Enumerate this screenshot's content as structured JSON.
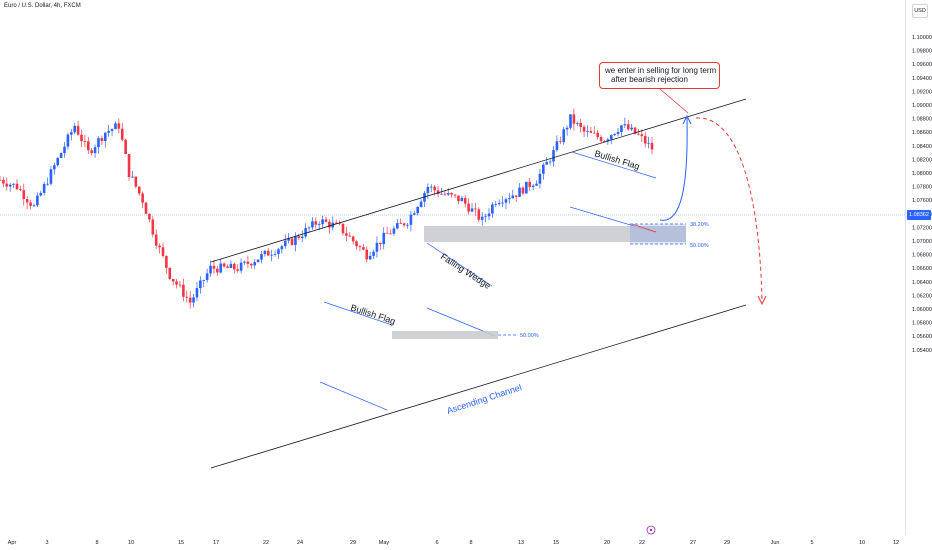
{
  "header": {
    "symbol_text": "Euro / U.S. Dollar, 4h, FXCM"
  },
  "currency_button": "USD",
  "price_scale": {
    "labels": [
      "1.10000",
      "1.09800",
      "1.09600",
      "1.09400",
      "1.09200",
      "1.09000",
      "1.08800",
      "1.08600",
      "1.08400",
      "1.08200",
      "1.08000",
      "1.07800",
      "1.07600",
      "1.07400",
      "1.07200",
      "1.07000",
      "1.06800",
      "1.06600",
      "1.06400",
      "1.06200",
      "1.06000",
      "1.05800",
      "1.05600",
      "1.05400"
    ],
    "current_price_label": "1.08362"
  },
  "time_axis": {
    "labels": [
      "Apr",
      "3",
      "8",
      "10",
      "15",
      "17",
      "22",
      "24",
      "29",
      "May",
      "6",
      "8",
      "13",
      "15",
      "20",
      "22",
      "27",
      "29",
      "Jun",
      "5",
      "10",
      "12"
    ]
  },
  "annotations": {
    "bullish_flag_1": "Bullish Flag",
    "bullish_flag_2": "Bullish Flag",
    "falling_wedge": "Falling Wedge",
    "ascending_channel": "Ascending Channel",
    "fib_382": "38.20%",
    "fib_500_upper": "50.00%",
    "fib_500_lower": "50.00%",
    "note_line1": "we enter in selling for long term",
    "note_line2": "after bearish rejection"
  },
  "colors": {
    "up": "#2962ff",
    "down": "#f23645",
    "line": "#131722",
    "annotation_blue": "#2962ff",
    "annotation_red": "#e53935",
    "zone": "#c8c9cc"
  },
  "chart_data": {
    "type": "candlestick",
    "instrument": "Euro / U.S. Dollar",
    "timeframe": "4h",
    "source": "FXCM",
    "ylim": [
      1.054,
      1.101
    ],
    "current_price": 1.08362,
    "grid": false,
    "path_points": [
      {
        "i": 0,
        "p": 1.079
      },
      {
        "i": 5,
        "p": 1.078
      },
      {
        "i": 10,
        "p": 1.075
      },
      {
        "i": 16,
        "p": 1.081
      },
      {
        "i": 22,
        "p": 1.087
      },
      {
        "i": 26,
        "p": 1.083
      },
      {
        "i": 31,
        "p": 1.086
      },
      {
        "i": 35,
        "p": 1.087
      },
      {
        "i": 38,
        "p": 1.08
      },
      {
        "i": 42,
        "p": 1.076
      },
      {
        "i": 46,
        "p": 1.07
      },
      {
        "i": 50,
        "p": 1.065
      },
      {
        "i": 56,
        "p": 1.061
      },
      {
        "i": 62,
        "p": 1.066
      },
      {
        "i": 70,
        "p": 1.066
      },
      {
        "i": 78,
        "p": 1.068
      },
      {
        "i": 86,
        "p": 1.07
      },
      {
        "i": 94,
        "p": 1.073
      },
      {
        "i": 100,
        "p": 1.072
      },
      {
        "i": 108,
        "p": 1.068
      },
      {
        "i": 114,
        "p": 1.071
      },
      {
        "i": 120,
        "p": 1.073
      },
      {
        "i": 126,
        "p": 1.078
      },
      {
        "i": 130,
        "p": 1.077
      },
      {
        "i": 136,
        "p": 1.076
      },
      {
        "i": 142,
        "p": 1.073
      },
      {
        "i": 146,
        "p": 1.076
      },
      {
        "i": 152,
        "p": 1.077
      },
      {
        "i": 158,
        "p": 1.079
      },
      {
        "i": 163,
        "p": 1.083
      },
      {
        "i": 168,
        "p": 1.088
      },
      {
        "i": 172,
        "p": 1.086
      },
      {
        "i": 178,
        "p": 1.085
      },
      {
        "i": 183,
        "p": 1.087
      },
      {
        "i": 188,
        "p": 1.0855
      },
      {
        "i": 192,
        "p": 1.0836
      }
    ],
    "candle_count": 193
  }
}
